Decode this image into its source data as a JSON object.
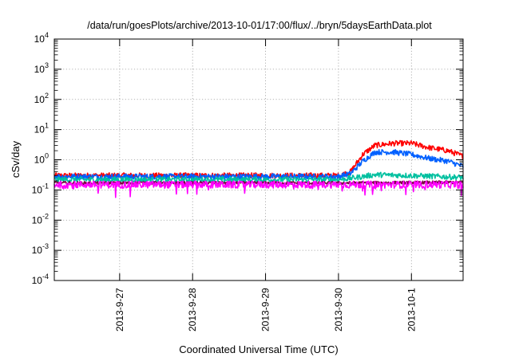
{
  "chart_data": {
    "type": "line",
    "title": "/data/run/goesPlots/archive/2013-10-01/17:00/flux/../bryn/5daysEarthData.plot",
    "xlabel": "Coordinated Universal Time (UTC)",
    "ylabel": "cSv/day",
    "xaxis": {
      "type": "time",
      "range": [
        "2013-09-26T02:30",
        "2013-10-01T17:00"
      ],
      "ticks": [
        "2013-9-27",
        "2013-9-28",
        "2013-9-29",
        "2013-9-30",
        "2013-10-1"
      ],
      "tick_dates": [
        "2013-09-27T00:00",
        "2013-09-28T00:00",
        "2013-09-29T00:00",
        "2013-09-30T00:00",
        "2013-10-01T00:00"
      ]
    },
    "yaxis": {
      "scale": "log",
      "range": [
        0.0001,
        10000
      ],
      "tick_labels": [
        {
          "base": "10",
          "exp": "4"
        },
        {
          "base": "10",
          "exp": "3"
        },
        {
          "base": "10",
          "exp": "2"
        },
        {
          "base": "10",
          "exp": "1"
        },
        {
          "base": "10",
          "exp": "0"
        },
        {
          "base": "10",
          "exp": "-1"
        },
        {
          "base": "10",
          "exp": "-2"
        },
        {
          "base": "10",
          "exp": "-3"
        },
        {
          "base": "10",
          "exp": "-4"
        }
      ]
    },
    "grid": true,
    "series": [
      {
        "color": "#ff0000",
        "points": [
          [
            "2013-09-26T02:30",
            0.3
          ],
          [
            "2013-09-27T00:00",
            0.3
          ],
          [
            "2013-09-28T00:00",
            0.3
          ],
          [
            "2013-09-29T00:00",
            0.3
          ],
          [
            "2013-09-30T00:00",
            0.3
          ],
          [
            "2013-09-30T04:00",
            0.4
          ],
          [
            "2013-09-30T08:00",
            1.5
          ],
          [
            "2013-09-30T12:00",
            3.0
          ],
          [
            "2013-09-30T18:00",
            3.5
          ],
          [
            "2013-10-01T00:00",
            3.5
          ],
          [
            "2013-10-01T06:00",
            2.5
          ],
          [
            "2013-10-01T12:00",
            2.0
          ],
          [
            "2013-10-01T17:00",
            1.3
          ]
        ]
      },
      {
        "color": "#0060ff",
        "points": [
          [
            "2013-09-26T02:30",
            0.28
          ],
          [
            "2013-09-27T00:00",
            0.28
          ],
          [
            "2013-09-28T00:00",
            0.28
          ],
          [
            "2013-09-29T00:00",
            0.28
          ],
          [
            "2013-09-30T00:00",
            0.28
          ],
          [
            "2013-09-30T04:00",
            0.35
          ],
          [
            "2013-09-30T08:00",
            0.9
          ],
          [
            "2013-09-30T12:00",
            1.8
          ],
          [
            "2013-09-30T18:00",
            1.8
          ],
          [
            "2013-10-01T00:00",
            1.5
          ],
          [
            "2013-10-01T06:00",
            1.1
          ],
          [
            "2013-10-01T12:00",
            0.9
          ],
          [
            "2013-10-01T17:00",
            0.6
          ]
        ]
      },
      {
        "color": "#00c0a0",
        "points": [
          [
            "2013-09-26T02:30",
            0.22
          ],
          [
            "2013-09-27T00:00",
            0.22
          ],
          [
            "2013-09-28T00:00",
            0.22
          ],
          [
            "2013-09-29T00:00",
            0.22
          ],
          [
            "2013-09-30T00:00",
            0.22
          ],
          [
            "2013-09-30T06:00",
            0.26
          ],
          [
            "2013-09-30T12:00",
            0.32
          ],
          [
            "2013-10-01T00:00",
            0.3
          ],
          [
            "2013-10-01T17:00",
            0.26
          ]
        ]
      },
      {
        "color": "#7a0040",
        "points": [
          [
            "2013-09-26T02:30",
            0.17
          ],
          [
            "2013-09-28T00:00",
            0.17
          ],
          [
            "2013-09-30T00:00",
            0.17
          ],
          [
            "2013-10-01T17:00",
            0.18
          ]
        ]
      },
      {
        "color": "#ff00ff",
        "points": [
          [
            "2013-09-26T02:30",
            0.15
          ],
          [
            "2013-09-28T00:00",
            0.15
          ],
          [
            "2013-09-30T00:00",
            0.15
          ],
          [
            "2013-10-01T17:00",
            0.15
          ]
        ]
      }
    ]
  }
}
